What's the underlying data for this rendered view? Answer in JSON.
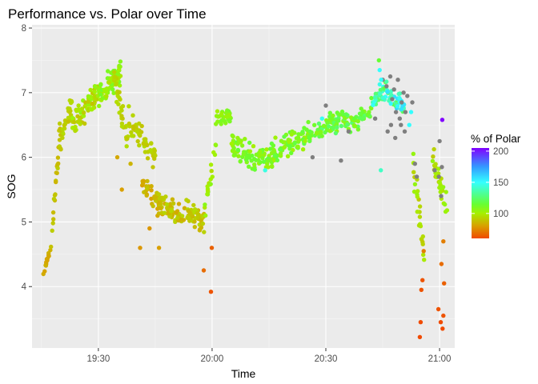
{
  "chart_data": {
    "type": "scatter",
    "title": "Performance vs. Polar over Time",
    "xlabel": "Time",
    "ylabel": "SOG",
    "x_ticks": [
      "19:30",
      "20:00",
      "20:30",
      "21:00"
    ],
    "x_tick_minutes": [
      1170,
      1200,
      1230,
      1260
    ],
    "xlim_minutes": [
      1152.5,
      1264
    ],
    "y_ticks": [
      4,
      5,
      6,
      7,
      8
    ],
    "ylim": [
      3.05,
      8.05
    ],
    "grid": true,
    "legend": {
      "title": "% of Polar",
      "position": "right",
      "ticks": [
        100,
        150,
        200
      ],
      "range": [
        60,
        205
      ],
      "gradient": [
        {
          "value": 60,
          "color": "#f04a00"
        },
        {
          "value": 80,
          "color": "#d9a000"
        },
        {
          "value": 100,
          "color": "#a6f000"
        },
        {
          "value": 115,
          "color": "#66ff33"
        },
        {
          "value": 150,
          "color": "#33ffff"
        },
        {
          "value": 175,
          "color": "#3399ff"
        },
        {
          "value": 205,
          "color": "#8000ff"
        }
      ]
    },
    "na_color": "#7f7f7f",
    "series_segments": [
      {
        "t": [
          1155.5,
          1157.5
        ],
        "sog": [
          4.2,
          4.6
        ],
        "pct": [
          78,
          85
        ],
        "n": 14,
        "spread": 0.1
      },
      {
        "t": [
          1157.5,
          1160
        ],
        "sog": [
          4.6,
          6.5
        ],
        "pct": [
          85,
          92
        ],
        "n": 24,
        "spread": 0.22
      },
      {
        "t": [
          1160,
          1163
        ],
        "sog": [
          6.3,
          6.8
        ],
        "pct": [
          88,
          95
        ],
        "n": 30,
        "spread": 0.25
      },
      {
        "t": [
          1163,
          1170
        ],
        "sog": [
          6.5,
          7.0
        ],
        "pct": [
          88,
          105
        ],
        "n": 70,
        "spread": 0.28
      },
      {
        "t": [
          1170,
          1176
        ],
        "sog": [
          7.0,
          7.3
        ],
        "pct": [
          96,
          112
        ],
        "n": 75,
        "spread": 0.25
      },
      {
        "t": [
          1174,
          1178
        ],
        "sog": [
          7.3,
          6.1
        ],
        "pct": [
          90,
          96
        ],
        "n": 35,
        "spread": 0.3
      },
      {
        "t": [
          1178,
          1185
        ],
        "sog": [
          6.6,
          6.0
        ],
        "pct": [
          88,
          95
        ],
        "n": 45,
        "spread": 0.3
      },
      {
        "t": [
          1181,
          1187
        ],
        "sog": [
          5.6,
          5.2
        ],
        "pct": [
          80,
          90
        ],
        "n": 40,
        "spread": 0.25
      },
      {
        "t": [
          1186,
          1193
        ],
        "sog": [
          5.3,
          5.0
        ],
        "pct": [
          82,
          94
        ],
        "n": 60,
        "spread": 0.28
      },
      {
        "t": [
          1193,
          1198
        ],
        "sog": [
          5.2,
          5.0
        ],
        "pct": [
          85,
          96
        ],
        "n": 45,
        "spread": 0.25
      },
      {
        "t": [
          1198,
          1201
        ],
        "sog": [
          5.2,
          6.2
        ],
        "pct": [
          95,
          108
        ],
        "n": 20,
        "spread": 0.3
      },
      {
        "t": [
          1201,
          1205
        ],
        "sog": [
          6.6,
          6.6
        ],
        "pct": [
          100,
          112
        ],
        "n": 35,
        "spread": 0.2
      },
      {
        "t": [
          1205,
          1211
        ],
        "sog": [
          6.2,
          6.0
        ],
        "pct": [
          100,
          115
        ],
        "n": 50,
        "spread": 0.3
      },
      {
        "t": [
          1211,
          1216
        ],
        "sog": [
          6.0,
          6.0
        ],
        "pct": [
          100,
          118
        ],
        "n": 40,
        "spread": 0.3
      },
      {
        "t": [
          1216,
          1227
        ],
        "sog": [
          6.1,
          6.4
        ],
        "pct": [
          100,
          118
        ],
        "n": 80,
        "spread": 0.25
      },
      {
        "t": [
          1227,
          1236
        ],
        "sog": [
          6.4,
          6.6
        ],
        "pct": [
          105,
          125
        ],
        "n": 70,
        "spread": 0.25
      },
      {
        "t": [
          1236,
          1242
        ],
        "sog": [
          6.5,
          6.7
        ],
        "pct": [
          105,
          130
        ],
        "n": 40,
        "spread": 0.22
      },
      {
        "t": [
          1242,
          1246
        ],
        "sog": [
          6.8,
          7.1
        ],
        "pct": [
          115,
          150
        ],
        "n": 30,
        "spread": 0.2
      },
      {
        "t": [
          1246,
          1251
        ],
        "sog": [
          7.0,
          6.8
        ],
        "pct": [
          115,
          160
        ],
        "n": 40,
        "spread": 0.2
      },
      {
        "t": [
          1253,
          1256
        ],
        "sog": [
          5.8,
          4.5
        ],
        "pct": [
          90,
          105
        ],
        "n": 25,
        "spread": 0.4
      },
      {
        "t": [
          1258,
          1262
        ],
        "sog": [
          6.0,
          5.2
        ],
        "pct": [
          90,
          105
        ],
        "n": 30,
        "spread": 0.35
      }
    ],
    "gray_points": [
      [
        1236,
        6.4
      ],
      [
        1243,
        6.6
      ],
      [
        1245,
        7.2
      ],
      [
        1246,
        7.1
      ],
      [
        1247,
        7.25
      ],
      [
        1247.5,
        6.9
      ],
      [
        1248,
        7.05
      ],
      [
        1248.5,
        6.7
      ],
      [
        1249,
        7.2
      ],
      [
        1249.5,
        6.6
      ],
      [
        1250,
        6.85
      ],
      [
        1250.5,
        7.0
      ],
      [
        1251,
        6.7
      ],
      [
        1251.5,
        6.95
      ],
      [
        1248.3,
        6.3
      ],
      [
        1249.8,
        6.5
      ],
      [
        1247.2,
        6.5
      ],
      [
        1250.8,
        6.4
      ],
      [
        1253.5,
        5.9
      ],
      [
        1254,
        5.7
      ],
      [
        1258.7,
        5.8
      ],
      [
        1259.8,
        5.7
      ],
      [
        1260,
        6.25
      ],
      [
        1260.4,
        5.4
      ],
      [
        1260.6,
        5.85
      ],
      [
        1226.5,
        6.0
      ],
      [
        1230,
        6.8
      ],
      [
        1234,
        5.95
      ],
      [
        1246.3,
        6.4
      ],
      [
        1252.8,
        6.85
      ]
    ],
    "extra_points": [
      [
        1199.7,
        3.92,
        62
      ],
      [
        1199.9,
        4.6,
        65
      ],
      [
        1197.8,
        4.25,
        68
      ],
      [
        1176.2,
        5.5,
        80
      ],
      [
        1181,
        4.6,
        78
      ],
      [
        1183.5,
        4.9,
        78
      ],
      [
        1186,
        4.6,
        80
      ],
      [
        1178.5,
        5.9,
        85
      ],
      [
        1175,
        6.0,
        82
      ],
      [
        1254.8,
        3.22,
        60
      ],
      [
        1255,
        3.45,
        60
      ],
      [
        1255.2,
        3.95,
        62
      ],
      [
        1255.5,
        4.1,
        62
      ],
      [
        1259.7,
        3.65,
        62
      ],
      [
        1260.3,
        3.45,
        60
      ],
      [
        1260.8,
        3.35,
        60
      ],
      [
        1261,
        3.55,
        62
      ],
      [
        1261.2,
        4.05,
        65
      ],
      [
        1260.5,
        4.35,
        68
      ],
      [
        1261,
        4.7,
        72
      ],
      [
        1255.8,
        4.55,
        72
      ],
      [
        1260.7,
        6.58,
        205
      ],
      [
        1244,
        7.5,
        115
      ],
      [
        1244.2,
        7.35,
        150
      ],
      [
        1244.6,
        7.2,
        150
      ],
      [
        1252,
        6.5,
        150
      ],
      [
        1252.5,
        6.7,
        150
      ],
      [
        1244.5,
        5.8,
        140
      ],
      [
        1214,
        5.8,
        145
      ],
      [
        1229,
        6.6,
        148
      ]
    ]
  }
}
